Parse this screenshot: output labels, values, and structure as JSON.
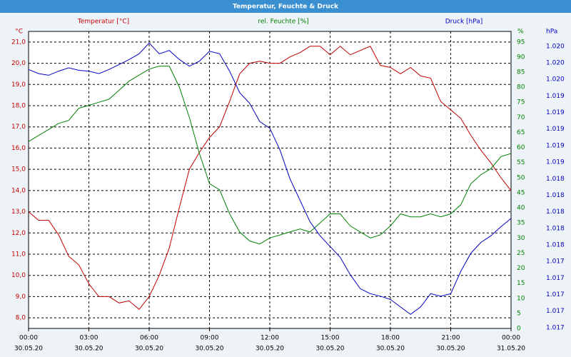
{
  "chart_data": {
    "type": "line",
    "title": "Temperatur, Feuchte & Druck",
    "ylabel": "Temperatur [°C]",
    "yunit": "°C",
    "y2label": "rel. Feuchte [%]",
    "y2unit": "%",
    "y3label": "Druck [hPa]",
    "y3unit": "hPa",
    "grid": true,
    "x": [
      0,
      0.5,
      1,
      1.5,
      2,
      2.5,
      3,
      3.5,
      4,
      4.5,
      5,
      5.5,
      6,
      6.5,
      7,
      7.5,
      8,
      8.5,
      9,
      9.5,
      10,
      10.5,
      11,
      11.5,
      12,
      12.5,
      13,
      13.5,
      14,
      14.5,
      15,
      15.5,
      16,
      16.5,
      17,
      17.5,
      18,
      18.5,
      19,
      19.5,
      20,
      20.5,
      21,
      21.5,
      22,
      22.5,
      23,
      23.5,
      24
    ],
    "xlim": [
      0,
      24
    ],
    "xticks": [
      {
        "value": 0,
        "label": "00:00"
      },
      {
        "value": 3,
        "label": "03:00"
      },
      {
        "value": 6,
        "label": "06:00"
      },
      {
        "value": 9,
        "label": "09:00"
      },
      {
        "value": 12,
        "label": "12:00"
      },
      {
        "value": 15,
        "label": "15:00"
      },
      {
        "value": 18,
        "label": "18:00"
      },
      {
        "value": 21,
        "label": "21:00"
      },
      {
        "value": 24,
        "label": "00:00"
      }
    ],
    "xtick_dates": [
      "30.05.20",
      "30.05.20",
      "30.05.20",
      "30.05.20",
      "30.05.20",
      "30.05.20",
      "30.05.20",
      "30.05.20",
      "31.05.20"
    ],
    "ylim": [
      7.5,
      21.5
    ],
    "yticks": [
      {
        "value": 8,
        "label": "8,0"
      },
      {
        "value": 9,
        "label": "9,0"
      },
      {
        "value": 10,
        "label": "10,0"
      },
      {
        "value": 11,
        "label": "11,0"
      },
      {
        "value": 12,
        "label": "12,0"
      },
      {
        "value": 13,
        "label": "13,0"
      },
      {
        "value": 14,
        "label": "14,0"
      },
      {
        "value": 15,
        "label": "15,0"
      },
      {
        "value": 16,
        "label": "16,0"
      },
      {
        "value": 17,
        "label": "17,0"
      },
      {
        "value": 18,
        "label": "18,0"
      },
      {
        "value": 19,
        "label": "19,0"
      },
      {
        "value": 20,
        "label": "20,0"
      },
      {
        "value": 21,
        "label": "21,0"
      }
    ],
    "y2lim": [
      0,
      98.5
    ],
    "y2ticks": [
      0,
      5,
      10,
      15,
      20,
      25,
      30,
      35,
      40,
      45,
      50,
      55,
      60,
      65,
      70,
      75,
      80,
      85,
      90,
      95
    ],
    "y3lim": [
      1016.59,
      1020.18
    ],
    "y3ticks": [
      {
        "value": 1016.6,
        "label": "1.017"
      },
      {
        "value": 1016.8,
        "label": "1.017"
      },
      {
        "value": 1017.0,
        "label": "1.017"
      },
      {
        "value": 1017.2,
        "label": "1.017"
      },
      {
        "value": 1017.4,
        "label": "1.017"
      },
      {
        "value": 1017.6,
        "label": "1.018"
      },
      {
        "value": 1017.8,
        "label": "1.018"
      },
      {
        "value": 1018.0,
        "label": "1.018"
      },
      {
        "value": 1018.2,
        "label": "1.018"
      },
      {
        "value": 1018.4,
        "label": "1.018"
      },
      {
        "value": 1018.6,
        "label": "1.019"
      },
      {
        "value": 1018.8,
        "label": "1.019"
      },
      {
        "value": 1019.0,
        "label": "1.019"
      },
      {
        "value": 1019.2,
        "label": "1.019"
      },
      {
        "value": 1019.4,
        "label": "1.019"
      },
      {
        "value": 1019.6,
        "label": "1.020"
      },
      {
        "value": 1019.8,
        "label": "1.020"
      },
      {
        "value": 1020.0,
        "label": "1.020"
      }
    ],
    "series": [
      {
        "name": "Temperatur",
        "color": "#c00000",
        "axis": "y",
        "values": [
          13.0,
          12.6,
          12.6,
          11.9,
          10.9,
          10.5,
          9.6,
          9.0,
          9.0,
          8.7,
          8.8,
          8.4,
          9.0,
          10.0,
          11.3,
          13.2,
          15.0,
          15.8,
          16.5,
          17.0,
          18.2,
          19.5,
          20.0,
          20.1,
          20.0,
          20.0,
          20.3,
          20.5,
          20.8,
          20.8,
          20.4,
          20.8,
          20.4,
          20.6,
          20.8,
          19.9,
          19.8,
          19.5,
          19.8,
          19.4,
          19.3,
          18.2,
          17.8,
          17.4,
          16.6,
          15.9,
          15.3,
          14.6,
          14.0
        ]
      },
      {
        "name": "rel. Feuchte",
        "color": "#008000",
        "axis": "y2",
        "values": [
          62,
          64,
          66,
          68,
          69,
          73,
          74,
          75,
          76,
          79,
          82,
          84,
          86,
          87,
          87,
          80,
          70,
          58,
          48,
          46,
          38,
          32,
          29,
          28,
          30,
          31,
          32,
          33,
          32,
          35,
          38,
          38,
          34,
          32,
          30,
          31,
          34,
          38,
          37,
          37,
          38,
          37,
          38,
          41,
          48,
          51,
          53,
          57,
          58
        ]
      },
      {
        "name": "Druck",
        "color": "#0000c0",
        "axis": "y3",
        "values": [
          1019.72,
          1019.67,
          1019.65,
          1019.7,
          1019.74,
          1019.71,
          1019.7,
          1019.67,
          1019.72,
          1019.78,
          1019.84,
          1019.91,
          1020.04,
          1019.91,
          1019.95,
          1019.84,
          1019.76,
          1019.82,
          1019.94,
          1019.91,
          1019.7,
          1019.44,
          1019.31,
          1019.09,
          1019.01,
          1018.75,
          1018.4,
          1018.14,
          1017.88,
          1017.71,
          1017.58,
          1017.45,
          1017.24,
          1017.07,
          1017.01,
          1016.98,
          1016.94,
          1016.85,
          1016.76,
          1016.85,
          1017.01,
          1016.98,
          1017.01,
          1017.28,
          1017.5,
          1017.63,
          1017.71,
          1017.82,
          1017.92
        ]
      }
    ]
  }
}
